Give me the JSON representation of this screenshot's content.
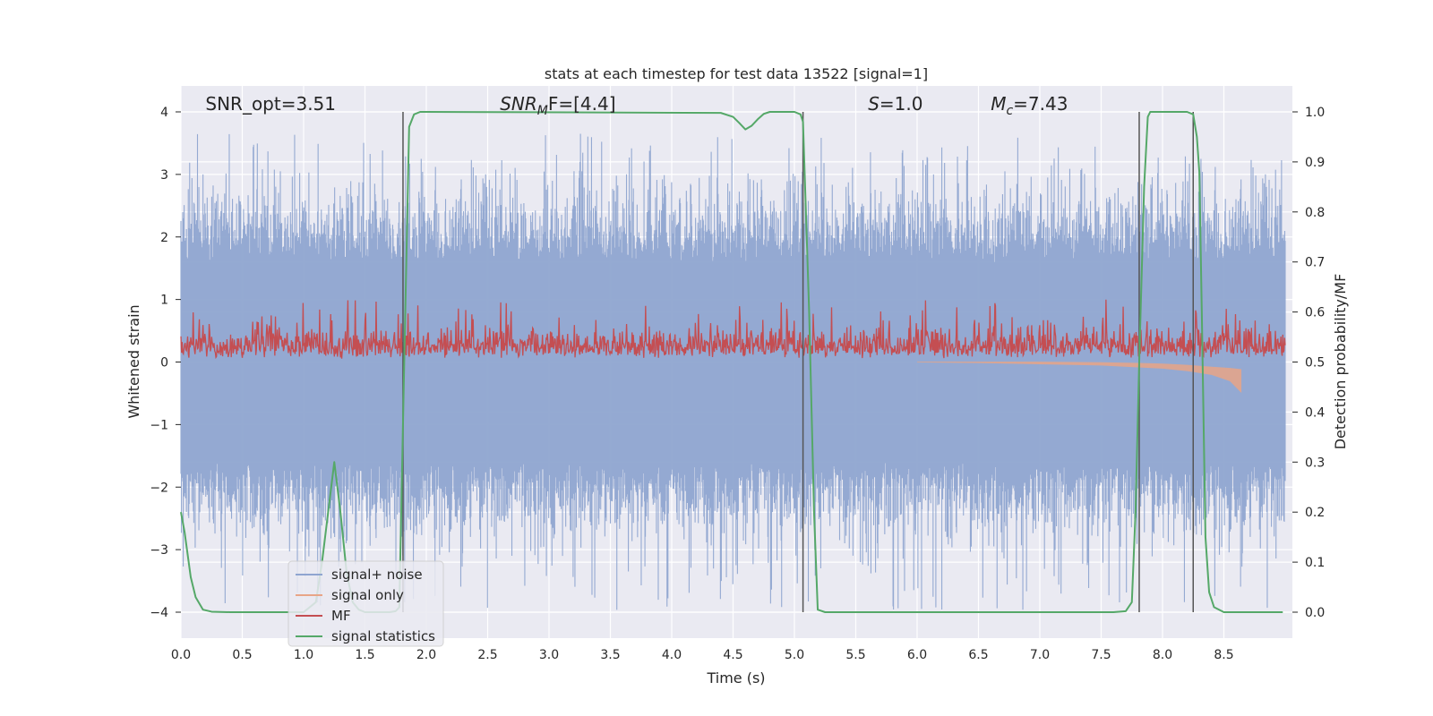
{
  "chart_data": {
    "type": "line",
    "title": "stats at each timestep for test data 13522 [signal=1]",
    "xlabel": "Time (s)",
    "ylabel": "Whitened strain",
    "ylabel_right": "Detection probability/MF",
    "xlim": [
      0.0,
      9.0
    ],
    "ylim": [
      -4.4,
      4.4
    ],
    "ylim_right": [
      -0.05,
      1.05
    ],
    "x_ticks": [
      0.0,
      0.5,
      1.0,
      1.5,
      2.0,
      2.5,
      3.0,
      3.5,
      4.0,
      4.5,
      5.0,
      5.5,
      6.0,
      6.5,
      7.0,
      7.5,
      8.0,
      8.5
    ],
    "x_tick_labels": [
      "0.0",
      "0.5",
      "1.0",
      "1.5",
      "2.0",
      "2.5",
      "3.0",
      "3.5",
      "4.0",
      "4.5",
      "5.0",
      "5.5",
      "6.0",
      "6.5",
      "7.0",
      "7.5",
      "8.0",
      "8.5"
    ],
    "y_ticks": [
      -4,
      -3,
      -2,
      -1,
      0,
      1,
      2,
      3,
      4
    ],
    "y_tick_labels": [
      "−4",
      "−3",
      "−2",
      "−1",
      "0",
      "1",
      "2",
      "3",
      "4"
    ],
    "y_ticks_right": [
      0.0,
      0.1,
      0.2,
      0.3,
      0.4,
      0.5,
      0.6,
      0.7,
      0.8,
      0.9,
      1.0
    ],
    "y_tick_labels_right": [
      "0.0",
      "0.1",
      "0.2",
      "0.3",
      "0.4",
      "0.5",
      "0.6",
      "0.7",
      "0.8",
      "0.9",
      "1.0"
    ],
    "grid": true,
    "legend_position": "bottom-left",
    "annotations": [
      {
        "id": "snr-opt",
        "text": "SNR_opt=3.51",
        "x": 0.2
      },
      {
        "id": "snr-mf",
        "text": "SNR_MF=[4.4]",
        "base": "SNR",
        "sub": "M",
        "rest": "F=[4.4]",
        "x": 2.6
      },
      {
        "id": "s-value",
        "text": "S=1.0",
        "base": "S",
        "rest": "=1.0",
        "x": 5.6
      },
      {
        "id": "mc-value",
        "text": "M_c=7.43",
        "base": "M",
        "sub": "c",
        "rest": "=7.43",
        "x": 6.6
      }
    ],
    "vertical_lines_x": [
      1.81,
      5.07,
      7.81,
      8.25
    ],
    "series": [
      {
        "name": "signal+ noise",
        "color": "#8fa5d0",
        "axis": "left",
        "envelope": {
          "x": [
            0.0,
            9.0
          ],
          "typical_upper": 1.6,
          "typical_lower": -1.6,
          "peaks_upper_max": 3.65,
          "peaks_lower_min": -4.0
        }
      },
      {
        "name": "signal only",
        "color": "#e8a587",
        "axis": "left",
        "x": [
          6.0,
          6.5,
          7.0,
          7.5,
          7.8,
          8.0,
          8.2,
          8.4,
          8.55,
          8.64
        ],
        "upper": [
          0.0,
          0.0,
          0.0,
          -0.01,
          -0.02,
          -0.03,
          -0.05,
          -0.08,
          -0.1,
          -0.12
        ],
        "lower": [
          0.0,
          -0.01,
          -0.03,
          -0.05,
          -0.08,
          -0.1,
          -0.14,
          -0.2,
          -0.3,
          -0.48
        ]
      },
      {
        "name": "MF",
        "color": "#c44e52",
        "axis": "left",
        "envelope": {
          "x": [
            0.0,
            9.0
          ],
          "baseline": 0.05,
          "typical_upper": 0.45,
          "peaks_upper_max": 1.0
        }
      },
      {
        "name": "signal statistics",
        "color": "#55a868",
        "axis": "right",
        "x": [
          0.0,
          0.03,
          0.08,
          0.12,
          0.18,
          0.25,
          0.4,
          1.0,
          1.1,
          1.15,
          1.2,
          1.25,
          1.3,
          1.35,
          1.4,
          1.45,
          1.5,
          1.6,
          1.7,
          1.75,
          1.78,
          1.82,
          1.86,
          1.9,
          1.95,
          2.0,
          4.4,
          4.5,
          4.55,
          4.6,
          4.65,
          4.7,
          4.75,
          4.8,
          4.9,
          5.0,
          5.05,
          5.07,
          5.12,
          5.16,
          5.19,
          5.25,
          7.6,
          7.7,
          7.75,
          7.78,
          7.81,
          7.85,
          7.88,
          7.9,
          8.2,
          8.25,
          8.28,
          8.3,
          8.32,
          8.35,
          8.38,
          8.42,
          8.5,
          8.98
        ],
        "values": [
          0.2,
          0.16,
          0.07,
          0.03,
          0.005,
          0.001,
          0.0,
          0.0,
          0.02,
          0.1,
          0.2,
          0.3,
          0.2,
          0.08,
          0.02,
          0.005,
          0.0,
          0.0,
          0.0,
          0.002,
          0.01,
          0.5,
          0.97,
          0.995,
          1.0,
          1.0,
          0.998,
          0.99,
          0.978,
          0.965,
          0.972,
          0.985,
          0.996,
          1.0,
          1.0,
          1.0,
          0.995,
          0.98,
          0.6,
          0.2,
          0.005,
          0.0,
          0.0,
          0.002,
          0.02,
          0.2,
          0.5,
          0.85,
          0.99,
          1.0,
          1.0,
          0.995,
          0.95,
          0.88,
          0.6,
          0.15,
          0.04,
          0.01,
          0.0,
          0.0
        ]
      }
    ]
  }
}
